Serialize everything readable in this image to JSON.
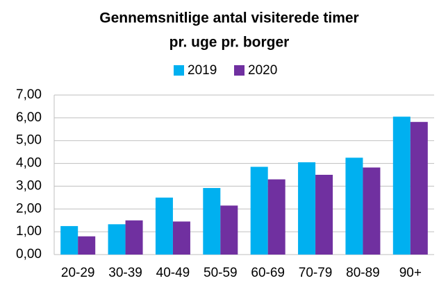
{
  "chart_data": {
    "type": "bar",
    "title": [
      "Gennemsnitlige antal visiterede timer",
      "pr. uge pr. borger"
    ],
    "categories": [
      "20-29",
      "30-39",
      "40-49",
      "50-59",
      "60-69",
      "70-79",
      "80-89",
      "90+"
    ],
    "series": [
      {
        "name": "2019",
        "color": "#00b0f0",
        "values": [
          1.25,
          1.33,
          2.5,
          2.92,
          3.85,
          4.05,
          4.25,
          6.05
        ]
      },
      {
        "name": "2020",
        "color": "#7030a0",
        "values": [
          0.8,
          1.5,
          1.45,
          2.15,
          3.3,
          3.5,
          3.82,
          5.82
        ]
      }
    ],
    "ylim": [
      0,
      7
    ],
    "yticks": [
      {
        "value": 0,
        "label": "0,00"
      },
      {
        "value": 1,
        "label": "1,00"
      },
      {
        "value": 2,
        "label": "2,00"
      },
      {
        "value": 3,
        "label": "3,00"
      },
      {
        "value": 4,
        "label": "4,00"
      },
      {
        "value": 5,
        "label": "5,00"
      },
      {
        "value": 6,
        "label": "6,00"
      },
      {
        "value": 7,
        "label": "7,00"
      }
    ],
    "grid": true,
    "legend": "top"
  }
}
